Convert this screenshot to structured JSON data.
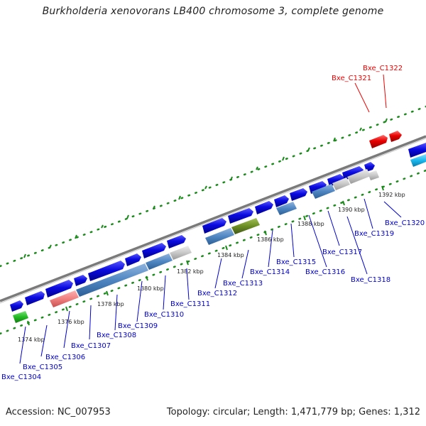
{
  "title": "Burkholderia xenovorans LB400 chromosome 3, complete genome",
  "accession": "Accession: NC_007953",
  "summary": "Topology: circular; Length: 1,471,779 bp; Genes: 1,312",
  "scale_labels": [
    "1374 kbp",
    "1376 kbp",
    "1378 kbp",
    "1380 kbp",
    "1382 kbp",
    "1384 kbp",
    "1386 kbp",
    "1388 kbp",
    "1390 kbp",
    "1392 kbp"
  ],
  "genes": [
    {
      "name": "Bxe_C1304",
      "color": "#0000cc"
    },
    {
      "name": "Bxe_C1305",
      "color": "#0000cc"
    },
    {
      "name": "Bxe_C1306",
      "color": "#0000cc"
    },
    {
      "name": "Bxe_C1307",
      "color": "#0000cc"
    },
    {
      "name": "Bxe_C1308",
      "color": "#0000cc"
    },
    {
      "name": "Bxe_C1309",
      "color": "#0000cc"
    },
    {
      "name": "Bxe_C1310",
      "color": "#0000cc"
    },
    {
      "name": "Bxe_C1311",
      "color": "#0000cc"
    },
    {
      "name": "Bxe_C1312",
      "color": "#0000cc"
    },
    {
      "name": "Bxe_C1313",
      "color": "#0000cc"
    },
    {
      "name": "Bxe_C1314",
      "color": "#0000cc"
    },
    {
      "name": "Bxe_C1315",
      "color": "#0000cc"
    },
    {
      "name": "Bxe_C1316",
      "color": "#0000cc"
    },
    {
      "name": "Bxe_C1317",
      "color": "#0000cc"
    },
    {
      "name": "Bxe_C1318",
      "color": "#0000cc"
    },
    {
      "name": "Bxe_C1319",
      "color": "#0000cc"
    },
    {
      "name": "Bxe_C1320",
      "color": "#0000cc"
    },
    {
      "name": "Bxe_C1321",
      "color": "#ee0000"
    },
    {
      "name": "Bxe_C1322",
      "color": "#ee0000"
    }
  ],
  "colors": {
    "backbone": "#777777",
    "tick": "#1a8a1a",
    "gene_blue": "#0a0ae0",
    "gene_red": "#e80000",
    "feature_steel": "#4f86c2",
    "feature_pink": "#f08080",
    "feature_grey": "#c8c8c8",
    "feature_olive": "#6b8e23",
    "feature_green": "#22bb22",
    "feature_cyan": "#19b8ee"
  }
}
